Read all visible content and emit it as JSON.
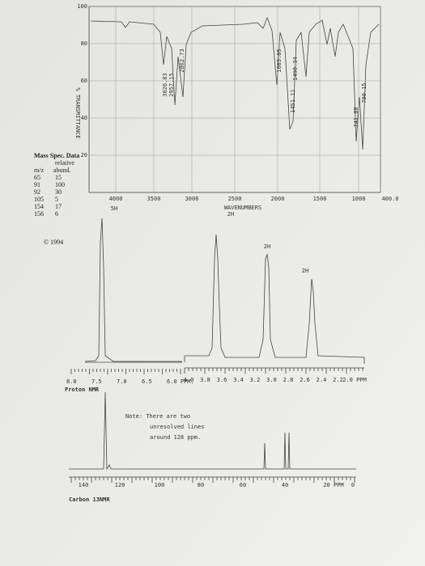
{
  "ir": {
    "y_axis_label": "% TRANSMITTANCE",
    "y_labels": [
      "100",
      "80",
      "60",
      "40",
      "20"
    ],
    "x_labels": [
      "4000",
      "3500",
      "3000",
      "2500",
      "2000",
      "1500",
      "1000",
      "400.0"
    ],
    "x_axis_label": "WAVENUMBERS",
    "peak_labels": [
      "3026.83",
      "2957.15",
      "2862.73",
      "1603.85",
      "1490.34",
      "1451.11",
      "741.88",
      "700.15"
    ]
  },
  "mass_spec": {
    "title": "Mass Spec. Data",
    "header_top": "relative",
    "columns": [
      "m/z",
      "abund."
    ],
    "rows": [
      [
        "65",
        "15"
      ],
      [
        "91",
        "100"
      ],
      [
        "92",
        "30"
      ],
      [
        "105",
        "5"
      ],
      [
        "154",
        "17"
      ],
      [
        "156",
        "6"
      ]
    ],
    "copyright": "© 1994"
  },
  "proton_nmr": {
    "integrations": [
      "5H",
      "2H",
      "2H",
      "2H"
    ],
    "left_axis": [
      "8.0",
      "7.5",
      "7.0",
      "6.5",
      "6.0 PPM."
    ],
    "right_axis": [
      "4.0",
      "3.8",
      "3.6",
      "3.4",
      "3.2",
      "3.0",
      "2.8",
      "2.6",
      "2.4",
      "2.2",
      "2.0 PPM"
    ],
    "caption": "Proton NMR"
  },
  "carbon_nmr": {
    "note": [
      "Note: There are two",
      "unresolved lines",
      "around 128 ppm."
    ],
    "axis": [
      "140",
      "120",
      "100",
      "80",
      "60",
      "40",
      "20 PPM",
      "0"
    ],
    "caption": "Carbon 13NMR"
  }
}
